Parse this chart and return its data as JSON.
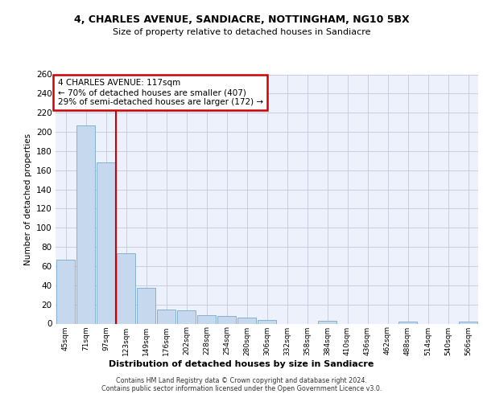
{
  "title1": "4, CHARLES AVENUE, SANDIACRE, NOTTINGHAM, NG10 5BX",
  "title2": "Size of property relative to detached houses in Sandiacre",
  "xlabel": "Distribution of detached houses by size in Sandiacre",
  "ylabel": "Number of detached properties",
  "bar_color": "#c5d8ed",
  "bar_edge_color": "#7aa8cc",
  "categories": [
    "45sqm",
    "71sqm",
    "97sqm",
    "123sqm",
    "149sqm",
    "176sqm",
    "202sqm",
    "228sqm",
    "254sqm",
    "280sqm",
    "306sqm",
    "332sqm",
    "358sqm",
    "384sqm",
    "410sqm",
    "436sqm",
    "462sqm",
    "488sqm",
    "514sqm",
    "540sqm",
    "566sqm"
  ],
  "values": [
    67,
    207,
    168,
    73,
    37,
    15,
    14,
    9,
    8,
    6,
    4,
    0,
    0,
    3,
    0,
    0,
    0,
    2,
    0,
    0,
    2
  ],
  "ylim_max": 260,
  "ytick_step": 20,
  "vline_x": 2.5,
  "annotation_line1": "4 CHARLES AVENUE: 117sqm",
  "annotation_line2": "← 70% of detached houses are smaller (407)",
  "annotation_line3": "29% of semi-detached houses are larger (172) →",
  "annotation_box_color": "white",
  "annotation_box_edge_color": "#cc0000",
  "vline_color": "#cc0000",
  "background_color": "#edf1fb",
  "grid_color": "#c8cedf",
  "footer1": "Contains HM Land Registry data © Crown copyright and database right 2024.",
  "footer2": "Contains public sector information licensed under the Open Government Licence v3.0."
}
